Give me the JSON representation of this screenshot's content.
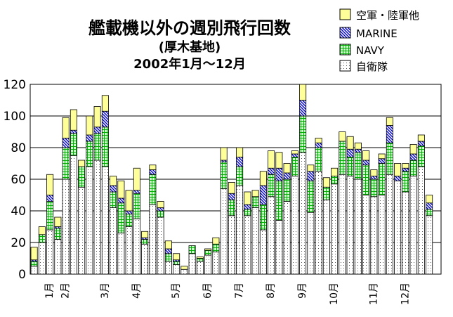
{
  "chart_data": {
    "type": "bar",
    "stacked": true,
    "title": "艦載機以外の週別飛行回数",
    "subtitle": "(厚木基地)",
    "period": "2002年1月〜12月",
    "xlabel": "",
    "ylabel": "",
    "ylim": [
      0,
      120
    ],
    "yticks": [
      0,
      20,
      40,
      60,
      80,
      100,
      120
    ],
    "grid": true,
    "legend_position": "top-right",
    "month_labels": [
      "1月",
      "2月",
      "3月",
      "4月",
      "5月",
      "6月",
      "7月",
      "8月",
      "9月",
      "10月",
      "11月",
      "12月"
    ],
    "month_label_weeks": [
      3,
      5,
      10,
      14,
      19,
      23,
      27,
      31,
      35,
      39,
      44,
      48
    ],
    "weeks": [
      1,
      2,
      3,
      4,
      5,
      6,
      7,
      8,
      9,
      10,
      11,
      12,
      13,
      14,
      15,
      16,
      17,
      18,
      19,
      20,
      21,
      22,
      23,
      24,
      25,
      26,
      27,
      28,
      29,
      30,
      31,
      32,
      33,
      34,
      35,
      36,
      37,
      38,
      39,
      40,
      41,
      42,
      43,
      44,
      45,
      46,
      47,
      48,
      49,
      50,
      51,
      52
    ],
    "series": [
      {
        "name": "自衛隊",
        "pattern": "dots",
        "values": [
          5,
          20,
          28,
          22,
          60,
          75,
          55,
          68,
          72,
          68,
          42,
          26,
          30,
          35,
          19,
          44,
          36,
          8,
          6,
          3,
          13,
          8,
          12,
          14,
          54,
          37,
          56,
          37,
          42,
          28,
          49,
          34,
          46,
          62,
          77,
          39,
          65,
          47,
          57,
          63,
          62,
          60,
          50,
          49,
          50,
          63,
          59,
          52,
          62,
          68,
          37,
          0
        ]
      },
      {
        "name": "NAVY",
        "pattern": "grid",
        "color": "#00b000",
        "values": [
          3,
          5,
          18,
          7,
          20,
          14,
          13,
          16,
          17,
          25,
          10,
          19,
          8,
          16,
          3,
          19,
          4,
          5,
          2,
          0,
          5,
          2,
          3,
          5,
          17,
          10,
          12,
          4,
          7,
          16,
          14,
          25,
          14,
          12,
          23,
          20,
          15,
          8,
          5,
          21,
          12,
          17,
          19,
          11,
          20,
          20,
          0,
          13,
          10,
          13,
          4,
          0
        ]
      },
      {
        "name": "MARINE",
        "pattern": "hatch",
        "color": "#0000cc",
        "values": [
          1,
          0,
          4,
          1,
          6,
          2,
          0,
          4,
          4,
          10,
          4,
          3,
          2,
          2,
          1,
          3,
          2,
          3,
          1,
          0,
          0,
          0,
          0,
          0,
          1,
          4,
          6,
          3,
          0,
          12,
          4,
          8,
          4,
          2,
          10,
          6,
          3,
          0,
          0,
          0,
          5,
          2,
          3,
          2,
          3,
          11,
          3,
          2,
          4,
          3,
          4,
          0
        ]
      },
      {
        "name": "空軍・陸軍他",
        "pattern": "solid",
        "color": "#ffff99",
        "values": [
          8,
          5,
          13,
          6,
          13,
          13,
          4,
          12,
          13,
          10,
          6,
          11,
          13,
          14,
          4,
          3,
          4,
          5,
          4,
          2,
          0,
          1,
          1,
          4,
          8,
          7,
          6,
          8,
          4,
          9,
          11,
          10,
          6,
          2,
          10,
          4,
          3,
          6,
          5,
          6,
          8,
          4,
          6,
          4,
          3,
          5,
          8,
          3,
          6,
          4,
          5,
          0
        ]
      }
    ]
  },
  "legend": {
    "items": [
      {
        "label": "空軍・陸軍他",
        "pattern": "solid",
        "color": "#ffff99"
      },
      {
        "label": "MARINE",
        "pattern": "hatch",
        "color": "#0000cc"
      },
      {
        "label": "NAVY",
        "pattern": "grid",
        "color": "#00b000"
      },
      {
        "label": "自衛隊",
        "pattern": "dots"
      }
    ]
  }
}
